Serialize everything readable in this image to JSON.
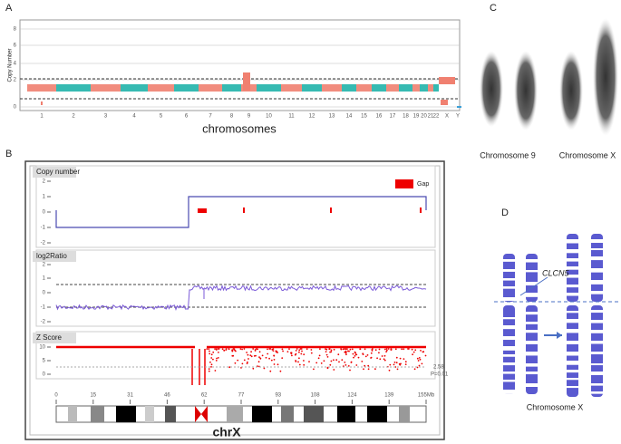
{
  "panel_a": {
    "label": "A",
    "y_axis_label": "Copy Number",
    "y_ticks": [
      "0",
      "2",
      "4",
      "6",
      "8"
    ],
    "x_labels": [
      "1",
      "2",
      "3",
      "4",
      "5",
      "6",
      "7",
      "8",
      "9",
      "10",
      "11",
      "12",
      "13",
      "14",
      "15",
      "16",
      "17",
      "18",
      "19",
      "20",
      "21",
      "22",
      "X",
      "Y"
    ],
    "x_axis_label": "chromosomes"
  },
  "panel_b": {
    "label": "B",
    "tracks": [
      {
        "title": "Copy number",
        "y_ticks": [
          "2",
          "1",
          "0",
          "-1",
          "-2"
        ],
        "legend": "Gap"
      },
      {
        "title": "log2Ratio",
        "y_ticks": [
          "2",
          "1",
          "0",
          "-1",
          "-2"
        ]
      },
      {
        "title": "Z Score",
        "y_ticks": [
          "10",
          "5",
          "0"
        ],
        "annotations": [
          "2.58",
          "P=0.01"
        ]
      }
    ],
    "x_ticks": [
      "0",
      "15",
      "31",
      "46",
      "62",
      "77",
      "93",
      "108",
      "124",
      "139",
      "155Mb"
    ],
    "chromosome": "chrX"
  },
  "panel_c": {
    "label": "C",
    "captions": [
      "Chromosome 9",
      "Chromosome X"
    ]
  },
  "panel_d": {
    "label": "D",
    "gene": "CLCN5",
    "caption": "Chromosome X"
  }
}
